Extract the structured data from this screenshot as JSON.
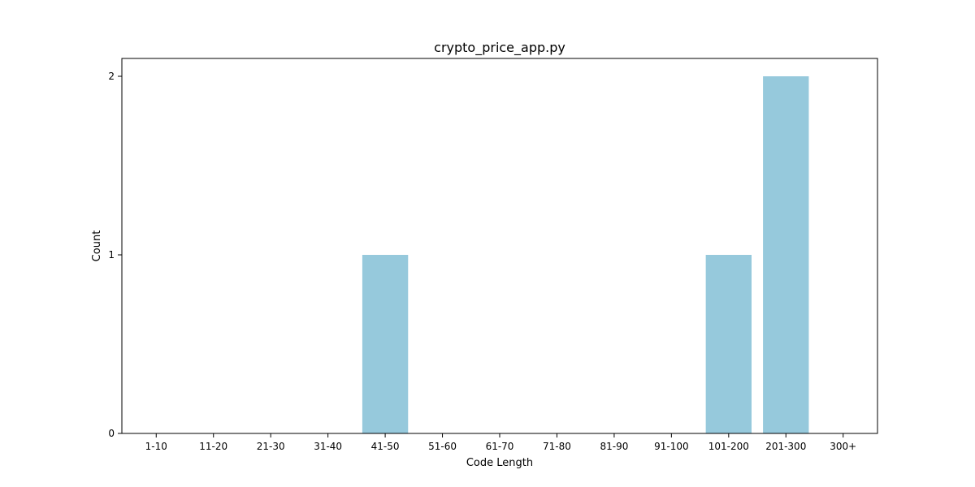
{
  "chart_data": {
    "type": "bar",
    "title": "crypto_price_app.py",
    "xlabel": "Code Length",
    "ylabel": "Count",
    "categories": [
      "1-10",
      "11-20",
      "21-30",
      "31-40",
      "41-50",
      "51-60",
      "61-70",
      "71-80",
      "81-90",
      "91-100",
      "101-200",
      "201-300",
      "300+"
    ],
    "values": [
      0,
      0,
      0,
      0,
      1,
      0,
      0,
      0,
      0,
      0,
      1,
      2,
      0
    ],
    "yticks": [
      0,
      1,
      2
    ],
    "ylim": [
      0,
      2.1
    ],
    "grid": false,
    "legend": "none",
    "bar_color": "#96c9dc"
  }
}
